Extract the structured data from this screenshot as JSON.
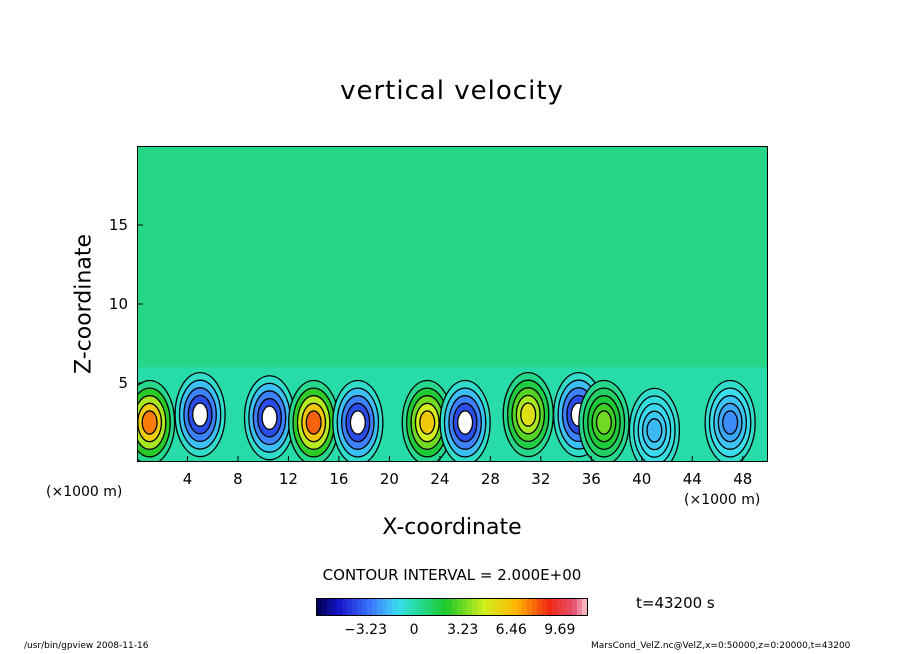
{
  "chart_data": {
    "type": "heatmap",
    "title": "vertical velocity",
    "xlabel": "X-coordinate",
    "ylabel": "Z-coordinate",
    "x_unit_label": "(×1000 m)",
    "xlim": [
      0,
      50
    ],
    "ylim": [
      0,
      20
    ],
    "x_ticks": [
      "4",
      "8",
      "12",
      "16",
      "20",
      "24",
      "28",
      "32",
      "36",
      "40",
      "44",
      "48"
    ],
    "y_ticks": [
      "5",
      "10",
      "15"
    ],
    "contour_interval_label": "CONTOUR INTERVAL = 2.000E+00",
    "colorbar": {
      "ticks": [
        "−3.23",
        "0",
        "3.23",
        "6.46",
        "9.69"
      ],
      "range": [
        -6.46,
        11.5
      ]
    },
    "time_label": "t=43200 s",
    "cells": [
      {
        "x": 1,
        "z": 2.5,
        "w": 9.5
      },
      {
        "x": 5,
        "z": 3,
        "w": -6
      },
      {
        "x": 10.5,
        "z": 2.8,
        "w": -6
      },
      {
        "x": 14,
        "z": 2.5,
        "w": 10
      },
      {
        "x": 17.5,
        "z": 2.5,
        "w": -6
      },
      {
        "x": 23,
        "z": 2.5,
        "w": 7.5
      },
      {
        "x": 26,
        "z": 2.5,
        "w": -6
      },
      {
        "x": 31,
        "z": 3,
        "w": 6.5
      },
      {
        "x": 35,
        "z": 3,
        "w": -6
      },
      {
        "x": 37,
        "z": 2.5,
        "w": 4
      },
      {
        "x": 41,
        "z": 2,
        "w": -2
      },
      {
        "x": 47,
        "z": 2.5,
        "w": -3
      }
    ]
  },
  "footer": {
    "left": "/usr/bin/gpview   2008-11-16",
    "right": "MarsCond_VelZ.nc@VelZ,x=0:50000,z=0:20000,t=43200"
  }
}
